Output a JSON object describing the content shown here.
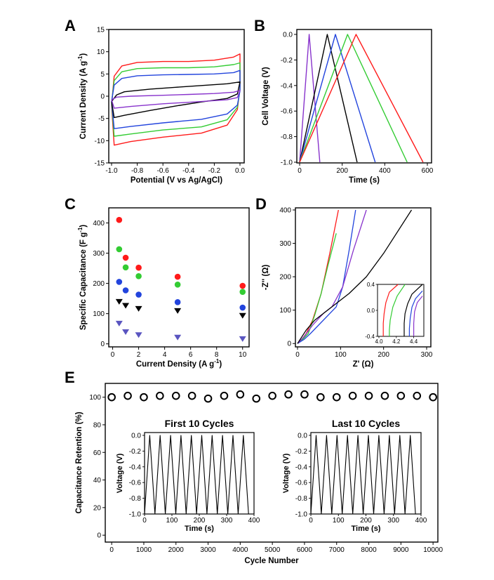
{
  "panel_letters": [
    "A",
    "B",
    "C",
    "D",
    "E"
  ],
  "colors": {
    "red": "#ff1a1a",
    "green": "#33cc33",
    "blue": "#2244dd",
    "black": "#000000",
    "purple": "#8833cc",
    "slate": "#5a55c0"
  },
  "chart_data": [
    {
      "panel": "A",
      "type": "line",
      "xlabel": "Potential (V vs Ag/AgCl)",
      "ylabel": "Current Density (A g",
      "ylabel_sup": "-1",
      "ylabel_end": ")",
      "xlim": [
        -1.0,
        0.0
      ],
      "ylim": [
        -15,
        15
      ],
      "xticks": [
        "-1.0",
        "-0.8",
        "-0.6",
        "-0.4",
        "-0.2",
        "0.0"
      ],
      "yticks": [
        "-15",
        "-10",
        "-5",
        "0",
        "5",
        "10",
        "15"
      ],
      "series": [
        {
          "color": "red",
          "top": [
            [
              -1.0,
              -2
            ],
            [
              -0.98,
              4.5
            ],
            [
              -0.92,
              6.8
            ],
            [
              -0.8,
              7.6
            ],
            [
              -0.6,
              7.8
            ],
            [
              -0.4,
              7.8
            ],
            [
              -0.2,
              8.1
            ],
            [
              -0.05,
              8.8
            ],
            [
              0.0,
              9.5
            ]
          ],
          "bottom": [
            [
              0.0,
              2
            ],
            [
              -0.02,
              -3
            ],
            [
              -0.1,
              -6.5
            ],
            [
              -0.3,
              -8.3
            ],
            [
              -0.6,
              -9.2
            ],
            [
              -0.85,
              -10.2
            ],
            [
              -0.98,
              -11
            ]
          ]
        },
        {
          "color": "green",
          "top": [
            [
              -1.0,
              -1.5
            ],
            [
              -0.98,
              3.5
            ],
            [
              -0.92,
              5.5
            ],
            [
              -0.8,
              6.2
            ],
            [
              -0.6,
              6.4
            ],
            [
              -0.4,
              6.4
            ],
            [
              -0.2,
              6.6
            ],
            [
              -0.05,
              7.1
            ],
            [
              0.0,
              7.5
            ]
          ],
          "bottom": [
            [
              0.0,
              1.5
            ],
            [
              -0.02,
              -2.5
            ],
            [
              -0.1,
              -5.3
            ],
            [
              -0.3,
              -6.9
            ],
            [
              -0.6,
              -7.6
            ],
            [
              -0.85,
              -8.5
            ],
            [
              -0.98,
              -9
            ]
          ]
        },
        {
          "color": "blue",
          "top": [
            [
              -1.0,
              -1.2
            ],
            [
              -0.98,
              2.5
            ],
            [
              -0.92,
              4
            ],
            [
              -0.8,
              4.6
            ],
            [
              -0.6,
              4.8
            ],
            [
              -0.4,
              4.9
            ],
            [
              -0.2,
              5
            ],
            [
              -0.05,
              5.3
            ],
            [
              0.0,
              5.8
            ]
          ],
          "bottom": [
            [
              0.0,
              1.2
            ],
            [
              -0.02,
              -2
            ],
            [
              -0.1,
              -4
            ],
            [
              -0.3,
              -5.2
            ],
            [
              -0.6,
              -6
            ],
            [
              -0.85,
              -6.8
            ],
            [
              -0.98,
              -7.3
            ]
          ]
        },
        {
          "color": "black",
          "top": [
            [
              -1.0,
              -1.2
            ],
            [
              -0.96,
              0.3
            ],
            [
              -0.9,
              1
            ],
            [
              -0.7,
              1.6
            ],
            [
              -0.5,
              2
            ],
            [
              -0.3,
              2.4
            ],
            [
              -0.1,
              2.8
            ],
            [
              0.0,
              3.2
            ]
          ],
          "bottom": [
            [
              0.0,
              3.2
            ],
            [
              -0.02,
              0.5
            ],
            [
              -0.1,
              -0.5
            ],
            [
              -0.3,
              -1.3
            ],
            [
              -0.5,
              -2.2
            ],
            [
              -0.7,
              -3.2
            ],
            [
              -0.9,
              -4.3
            ],
            [
              -0.98,
              -4.8
            ]
          ]
        },
        {
          "color": "purple",
          "top": [
            [
              -1.0,
              -0.8
            ],
            [
              -0.96,
              -0.2
            ],
            [
              -0.85,
              0
            ],
            [
              -0.6,
              0.2
            ],
            [
              -0.4,
              0.4
            ],
            [
              -0.2,
              0.6
            ],
            [
              -0.05,
              0.9
            ],
            [
              0.0,
              1.3
            ]
          ],
          "bottom": [
            [
              0.0,
              1.3
            ],
            [
              -0.02,
              -0.3
            ],
            [
              -0.1,
              -0.8
            ],
            [
              -0.3,
              -1.2
            ],
            [
              -0.6,
              -1.7
            ],
            [
              -0.85,
              -2.3
            ],
            [
              -0.98,
              -2.7
            ]
          ]
        }
      ]
    },
    {
      "panel": "B",
      "type": "line",
      "xlabel": "Time (s)",
      "ylabel": "Cell Voltage (V)",
      "xlim": [
        0,
        600
      ],
      "ylim": [
        -1.0,
        0.0
      ],
      "xticks": [
        "0",
        "200",
        "400",
        "600"
      ],
      "yticks": [
        "0.0",
        "-0.2",
        "-0.4",
        "-0.6",
        "-0.8",
        "-1.0"
      ],
      "series": [
        {
          "color": "purple",
          "peak": 45,
          "end": 95
        },
        {
          "color": "black",
          "peak": 130,
          "end": 270
        },
        {
          "color": "blue",
          "peak": 168,
          "end": 355
        },
        {
          "color": "green",
          "peak": 225,
          "end": 505
        },
        {
          "color": "red",
          "peak": 265,
          "end": 580
        }
      ]
    },
    {
      "panel": "C",
      "type": "scatter",
      "xlabel": "Current Density (A g",
      "xlabel_sup": "-1",
      "xlabel_end": ")",
      "ylabel": "Specific Capacitance (F g",
      "ylabel_sup": "-1",
      "ylabel_end": ")",
      "xlim": [
        -0.3,
        10.5
      ],
      "ylim": [
        -10,
        450
      ],
      "xticks": [
        "0",
        "2",
        "4",
        "6",
        "8",
        "10"
      ],
      "yticks": [
        "0",
        "100",
        "200",
        "300",
        "400"
      ],
      "x": [
        0.5,
        1,
        2,
        5,
        10
      ],
      "series": [
        {
          "color": "red",
          "marker": "circle",
          "values": [
            410,
            285,
            252,
            222,
            192
          ]
        },
        {
          "color": "green",
          "marker": "circle",
          "values": [
            313,
            253,
            224,
            196,
            172
          ]
        },
        {
          "color": "blue",
          "marker": "circle",
          "values": [
            205,
            177,
            163,
            138,
            120
          ]
        },
        {
          "color": "black",
          "marker": "triangle-down",
          "values": [
            140,
            127,
            117,
            110,
            94
          ]
        },
        {
          "color": "slate",
          "marker": "triangle-down",
          "values": [
            68,
            40,
            30,
            22,
            17
          ]
        }
      ]
    },
    {
      "panel": "D",
      "type": "line",
      "xlabel": "Z' (Ω)",
      "ylabel": "-Z'' (Ω)",
      "xlim": [
        0,
        300
      ],
      "ylim": [
        -10,
        400
      ],
      "xticks": [
        "0",
        "100",
        "200",
        "300"
      ],
      "yticks": [
        "0",
        "100",
        "200",
        "300",
        "400"
      ],
      "series": [
        {
          "color": "red",
          "points": [
            [
              0,
              0
            ],
            [
              10,
              12
            ],
            [
              20,
              30
            ],
            [
              35,
              70
            ],
            [
              55,
              150
            ],
            [
              75,
              270
            ],
            [
              95,
              400
            ]
          ]
        },
        {
          "color": "green",
          "points": [
            [
              0,
              0
            ],
            [
              10,
              10
            ],
            [
              25,
              30
            ],
            [
              40,
              85
            ],
            [
              55,
              150
            ],
            [
              70,
              230
            ],
            [
              90,
              330
            ]
          ]
        },
        {
          "color": "blue",
          "points": [
            [
              0,
              0
            ],
            [
              15,
              12
            ],
            [
              30,
              30
            ],
            [
              60,
              70
            ],
            [
              90,
              110
            ],
            [
              105,
              170
            ],
            [
              120,
              280
            ],
            [
              135,
              400
            ]
          ]
        },
        {
          "color": "purple",
          "points": [
            [
              0,
              0
            ],
            [
              15,
              20
            ],
            [
              35,
              55
            ],
            [
              60,
              90
            ],
            [
              80,
              110
            ],
            [
              105,
              170
            ],
            [
              130,
              280
            ],
            [
              160,
              400
            ]
          ]
        },
        {
          "color": "black",
          "points": [
            [
              0,
              0
            ],
            [
              20,
              40
            ],
            [
              40,
              70
            ],
            [
              80,
              110
            ],
            [
              120,
              150
            ],
            [
              160,
              200
            ],
            [
              200,
              270
            ],
            [
              265,
              400
            ]
          ]
        }
      ],
      "inset": {
        "xlim": [
          4.0,
          4.5
        ],
        "ylim": [
          -0.4,
          0.4
        ],
        "xticks": [
          "4.0",
          "4.2",
          "4.4"
        ],
        "yticks": [
          "0.4",
          "0.0",
          "-0.4"
        ],
        "series": [
          {
            "color": "red",
            "points": [
              [
                4.22,
                0.4
              ],
              [
                4.12,
                0.28
              ],
              [
                4.08,
                0.12
              ],
              [
                4.06,
                -0.05
              ],
              [
                4.05,
                -0.2
              ],
              [
                4.05,
                -0.4
              ]
            ]
          },
          {
            "color": "green",
            "points": [
              [
                4.3,
                0.4
              ],
              [
                4.21,
                0.22
              ],
              [
                4.16,
                0.05
              ],
              [
                4.13,
                -0.15
              ],
              [
                4.12,
                -0.3
              ],
              [
                4.12,
                -0.4
              ]
            ]
          },
          {
            "color": "black",
            "points": [
              [
                4.5,
                0.4
              ],
              [
                4.38,
                0.25
              ],
              [
                4.33,
                0.1
              ],
              [
                4.3,
                -0.05
              ],
              [
                4.29,
                -0.2
              ],
              [
                4.29,
                -0.4
              ]
            ]
          },
          {
            "color": "blue",
            "points": [
              [
                4.5,
                0.3
              ],
              [
                4.42,
                0.18
              ],
              [
                4.38,
                0.05
              ],
              [
                4.36,
                -0.12
              ],
              [
                4.35,
                -0.28
              ],
              [
                4.35,
                -0.4
              ]
            ]
          },
          {
            "color": "purple",
            "points": [
              [
                4.5,
                0.22
              ],
              [
                4.44,
                0.12
              ],
              [
                4.41,
                -0.02
              ],
              [
                4.4,
                -0.2
              ],
              [
                4.4,
                -0.4
              ]
            ]
          }
        ]
      }
    },
    {
      "panel": "E",
      "type": "scatter",
      "xlabel": "Cycle Number",
      "ylabel": "Capacitance Retention (%)",
      "xlim": [
        -200,
        10150
      ],
      "ylim": [
        -5,
        110
      ],
      "xticks": [
        "0",
        "1000",
        "2000",
        "3000",
        "4000",
        "5000",
        "6000",
        "7000",
        "8000",
        "9000",
        "10000"
      ],
      "yticks": [
        "0",
        "20",
        "40",
        "60",
        "80",
        "100"
      ],
      "marker": "open-circle",
      "x": [
        0,
        500,
        1000,
        1500,
        2000,
        2500,
        3000,
        3500,
        4000,
        4500,
        5000,
        5500,
        6000,
        6500,
        7000,
        7500,
        8000,
        8500,
        9000,
        9500,
        10000
      ],
      "values": [
        100,
        101,
        100,
        101,
        101,
        101,
        99,
        101,
        102,
        99,
        101,
        102,
        102,
        100,
        100,
        101,
        101,
        101,
        101,
        101,
        100
      ],
      "insets": [
        {
          "title": "First 10 Cycles",
          "xlabel": "Time (s)",
          "ylabel": "Voltage (V)",
          "xlim": [
            0,
            400
          ],
          "ylim": [
            -1.0,
            0.0
          ],
          "xticks": [
            "0",
            "100",
            "200",
            "300",
            "400"
          ],
          "yticks": [
            "0.0",
            "-0.2",
            "-0.4",
            "-0.6",
            "-0.8",
            "-1.0"
          ],
          "cycles": 10,
          "period": 38
        },
        {
          "title": "Last 10 Cycles",
          "xlabel": "Time (s)",
          "ylabel": "Voltage (V)",
          "xlim": [
            0,
            400
          ],
          "ylim": [
            -1.0,
            0.0
          ],
          "xticks": [
            "0",
            "100",
            "200",
            "300",
            "400"
          ],
          "yticks": [
            "0.0",
            "-0.2",
            "-0.4",
            "-0.6",
            "-0.8",
            "-1.0"
          ],
          "cycles": 10,
          "period": 38
        }
      ]
    }
  ]
}
